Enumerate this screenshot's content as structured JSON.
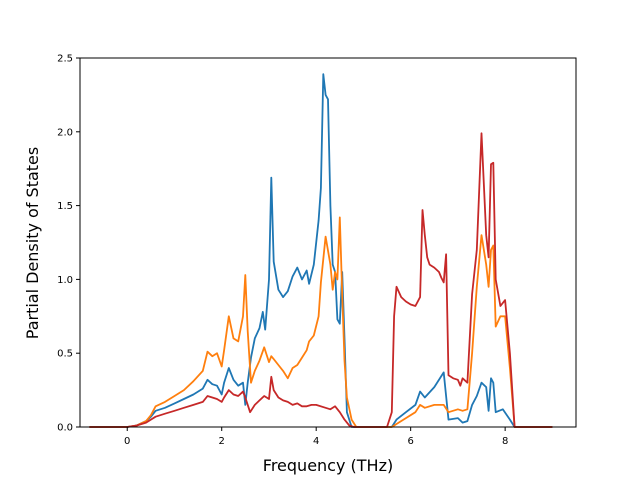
{
  "chart_data": {
    "type": "line",
    "xlabel": "Frequency (THz)",
    "ylabel": "Partial Density of States",
    "xlim": [
      -1.0,
      9.5
    ],
    "ylim": [
      0,
      2.5
    ],
    "xticks": [
      0,
      2,
      4,
      6,
      8
    ],
    "yticks": [
      0.0,
      0.5,
      1.0,
      1.5,
      2.0,
      2.5
    ],
    "ytick_labels": [
      "0.0",
      "0.5",
      "1.0",
      "1.5",
      "2.0",
      "2.5"
    ],
    "grid": false,
    "legend": "none",
    "series": [
      {
        "color": "#1f77b4",
        "points": [
          [
            -0.8,
            0.0
          ],
          [
            -0.3,
            0.0
          ],
          [
            0.0,
            0.0
          ],
          [
            0.2,
            0.01
          ],
          [
            0.4,
            0.04
          ],
          [
            0.5,
            0.07
          ],
          [
            0.6,
            0.11
          ],
          [
            0.8,
            0.13
          ],
          [
            1.0,
            0.16
          ],
          [
            1.2,
            0.19
          ],
          [
            1.4,
            0.22
          ],
          [
            1.6,
            0.26
          ],
          [
            1.7,
            0.32
          ],
          [
            1.8,
            0.29
          ],
          [
            1.9,
            0.28
          ],
          [
            2.0,
            0.22
          ],
          [
            2.05,
            0.3
          ],
          [
            2.15,
            0.4
          ],
          [
            2.25,
            0.32
          ],
          [
            2.35,
            0.28
          ],
          [
            2.45,
            0.3
          ],
          [
            2.5,
            0.15
          ],
          [
            2.55,
            0.3
          ],
          [
            2.62,
            0.47
          ],
          [
            2.7,
            0.6
          ],
          [
            2.8,
            0.67
          ],
          [
            2.87,
            0.78
          ],
          [
            2.92,
            0.66
          ],
          [
            3.0,
            1.0
          ],
          [
            3.05,
            1.69
          ],
          [
            3.1,
            1.12
          ],
          [
            3.2,
            0.93
          ],
          [
            3.3,
            0.88
          ],
          [
            3.4,
            0.92
          ],
          [
            3.5,
            1.02
          ],
          [
            3.6,
            1.08
          ],
          [
            3.7,
            1.0
          ],
          [
            3.8,
            1.06
          ],
          [
            3.85,
            0.97
          ],
          [
            3.95,
            1.1
          ],
          [
            4.05,
            1.4
          ],
          [
            4.1,
            1.62
          ],
          [
            4.15,
            2.39
          ],
          [
            4.2,
            2.25
          ],
          [
            4.25,
            2.22
          ],
          [
            4.3,
            1.5
          ],
          [
            4.35,
            1.1
          ],
          [
            4.4,
            1.05
          ],
          [
            4.45,
            0.73
          ],
          [
            4.5,
            0.7
          ],
          [
            4.55,
            1.05
          ],
          [
            4.6,
            0.6
          ],
          [
            4.65,
            0.1
          ],
          [
            4.75,
            0.0
          ],
          [
            5.0,
            0.0
          ],
          [
            5.6,
            0.0
          ],
          [
            5.7,
            0.05
          ],
          [
            5.9,
            0.1
          ],
          [
            6.1,
            0.15
          ],
          [
            6.2,
            0.24
          ],
          [
            6.3,
            0.2
          ],
          [
            6.5,
            0.27
          ],
          [
            6.7,
            0.37
          ],
          [
            6.8,
            0.05
          ],
          [
            7.0,
            0.06
          ],
          [
            7.1,
            0.03
          ],
          [
            7.2,
            0.04
          ],
          [
            7.3,
            0.15
          ],
          [
            7.4,
            0.21
          ],
          [
            7.5,
            0.3
          ],
          [
            7.6,
            0.27
          ],
          [
            7.65,
            0.11
          ],
          [
            7.7,
            0.33
          ],
          [
            7.75,
            0.3
          ],
          [
            7.8,
            0.1
          ],
          [
            7.95,
            0.12
          ],
          [
            8.1,
            0.05
          ],
          [
            8.2,
            0.0
          ],
          [
            8.5,
            0.0
          ],
          [
            9.0,
            0.0
          ]
        ]
      },
      {
        "color": "#ff7f0e",
        "points": [
          [
            -0.8,
            0.0
          ],
          [
            -0.3,
            0.0
          ],
          [
            0.0,
            0.0
          ],
          [
            0.2,
            0.01
          ],
          [
            0.4,
            0.04
          ],
          [
            0.5,
            0.08
          ],
          [
            0.6,
            0.14
          ],
          [
            0.8,
            0.17
          ],
          [
            1.0,
            0.21
          ],
          [
            1.2,
            0.25
          ],
          [
            1.4,
            0.31
          ],
          [
            1.6,
            0.38
          ],
          [
            1.7,
            0.51
          ],
          [
            1.8,
            0.48
          ],
          [
            1.9,
            0.5
          ],
          [
            2.0,
            0.41
          ],
          [
            2.05,
            0.52
          ],
          [
            2.15,
            0.75
          ],
          [
            2.25,
            0.6
          ],
          [
            2.35,
            0.58
          ],
          [
            2.45,
            0.75
          ],
          [
            2.5,
            1.03
          ],
          [
            2.55,
            0.65
          ],
          [
            2.62,
            0.3
          ],
          [
            2.7,
            0.38
          ],
          [
            2.8,
            0.45
          ],
          [
            2.9,
            0.54
          ],
          [
            3.0,
            0.44
          ],
          [
            3.05,
            0.48
          ],
          [
            3.1,
            0.46
          ],
          [
            3.2,
            0.42
          ],
          [
            3.3,
            0.38
          ],
          [
            3.4,
            0.33
          ],
          [
            3.5,
            0.4
          ],
          [
            3.6,
            0.42
          ],
          [
            3.7,
            0.47
          ],
          [
            3.8,
            0.52
          ],
          [
            3.85,
            0.58
          ],
          [
            3.95,
            0.62
          ],
          [
            4.05,
            0.75
          ],
          [
            4.1,
            0.98
          ],
          [
            4.2,
            1.29
          ],
          [
            4.3,
            1.1
          ],
          [
            4.35,
            0.93
          ],
          [
            4.4,
            1.05
          ],
          [
            4.45,
            1.0
          ],
          [
            4.5,
            1.42
          ],
          [
            4.55,
            0.9
          ],
          [
            4.6,
            0.45
          ],
          [
            4.65,
            0.2
          ],
          [
            4.75,
            0.05
          ],
          [
            4.85,
            0.0
          ],
          [
            5.6,
            0.0
          ],
          [
            5.7,
            0.02
          ],
          [
            5.9,
            0.06
          ],
          [
            6.1,
            0.1
          ],
          [
            6.2,
            0.15
          ],
          [
            6.3,
            0.13
          ],
          [
            6.5,
            0.15
          ],
          [
            6.7,
            0.15
          ],
          [
            6.8,
            0.1
          ],
          [
            7.0,
            0.12
          ],
          [
            7.1,
            0.11
          ],
          [
            7.2,
            0.12
          ],
          [
            7.3,
            0.5
          ],
          [
            7.4,
            0.95
          ],
          [
            7.5,
            1.3
          ],
          [
            7.6,
            1.1
          ],
          [
            7.65,
            0.95
          ],
          [
            7.7,
            1.2
          ],
          [
            7.75,
            1.23
          ],
          [
            7.8,
            0.68
          ],
          [
            7.9,
            0.75
          ],
          [
            8.0,
            0.75
          ],
          [
            8.1,
            0.4
          ],
          [
            8.2,
            0.0
          ],
          [
            8.5,
            0.0
          ],
          [
            9.0,
            0.0
          ]
        ]
      },
      {
        "color": "#c62828",
        "points": [
          [
            -0.8,
            0.0
          ],
          [
            -0.3,
            0.0
          ],
          [
            0.0,
            0.0
          ],
          [
            0.2,
            0.01
          ],
          [
            0.4,
            0.03
          ],
          [
            0.5,
            0.05
          ],
          [
            0.6,
            0.07
          ],
          [
            0.8,
            0.09
          ],
          [
            1.0,
            0.11
          ],
          [
            1.2,
            0.13
          ],
          [
            1.4,
            0.15
          ],
          [
            1.6,
            0.17
          ],
          [
            1.7,
            0.21
          ],
          [
            1.8,
            0.2
          ],
          [
            1.9,
            0.19
          ],
          [
            2.0,
            0.17
          ],
          [
            2.05,
            0.2
          ],
          [
            2.15,
            0.25
          ],
          [
            2.25,
            0.22
          ],
          [
            2.35,
            0.21
          ],
          [
            2.45,
            0.24
          ],
          [
            2.5,
            0.2
          ],
          [
            2.6,
            0.1
          ],
          [
            2.7,
            0.15
          ],
          [
            2.8,
            0.18
          ],
          [
            2.9,
            0.21
          ],
          [
            3.0,
            0.19
          ],
          [
            3.05,
            0.34
          ],
          [
            3.1,
            0.25
          ],
          [
            3.2,
            0.2
          ],
          [
            3.3,
            0.18
          ],
          [
            3.4,
            0.17
          ],
          [
            3.5,
            0.15
          ],
          [
            3.6,
            0.16
          ],
          [
            3.7,
            0.14
          ],
          [
            3.8,
            0.14
          ],
          [
            3.9,
            0.15
          ],
          [
            4.0,
            0.15
          ],
          [
            4.2,
            0.13
          ],
          [
            4.3,
            0.12
          ],
          [
            4.4,
            0.14
          ],
          [
            4.5,
            0.1
          ],
          [
            4.6,
            0.05
          ],
          [
            4.7,
            0.01
          ],
          [
            4.8,
            0.0
          ],
          [
            5.5,
            0.0
          ],
          [
            5.6,
            0.1
          ],
          [
            5.65,
            0.75
          ],
          [
            5.7,
            0.95
          ],
          [
            5.8,
            0.88
          ],
          [
            5.9,
            0.85
          ],
          [
            6.0,
            0.83
          ],
          [
            6.1,
            0.82
          ],
          [
            6.2,
            0.88
          ],
          [
            6.25,
            1.47
          ],
          [
            6.3,
            1.3
          ],
          [
            6.35,
            1.15
          ],
          [
            6.4,
            1.1
          ],
          [
            6.5,
            1.08
          ],
          [
            6.6,
            1.05
          ],
          [
            6.65,
            1.01
          ],
          [
            6.7,
            0.98
          ],
          [
            6.75,
            1.17
          ],
          [
            6.8,
            0.35
          ],
          [
            6.9,
            0.33
          ],
          [
            7.0,
            0.32
          ],
          [
            7.05,
            0.28
          ],
          [
            7.1,
            0.33
          ],
          [
            7.2,
            0.3
          ],
          [
            7.3,
            0.9
          ],
          [
            7.4,
            1.2
          ],
          [
            7.5,
            1.99
          ],
          [
            7.6,
            1.3
          ],
          [
            7.65,
            1.15
          ],
          [
            7.7,
            1.78
          ],
          [
            7.75,
            1.79
          ],
          [
            7.8,
            1.0
          ],
          [
            7.9,
            0.82
          ],
          [
            8.0,
            0.86
          ],
          [
            8.1,
            0.5
          ],
          [
            8.2,
            0.0
          ],
          [
            8.5,
            0.0
          ],
          [
            9.0,
            0.0
          ]
        ]
      }
    ]
  }
}
